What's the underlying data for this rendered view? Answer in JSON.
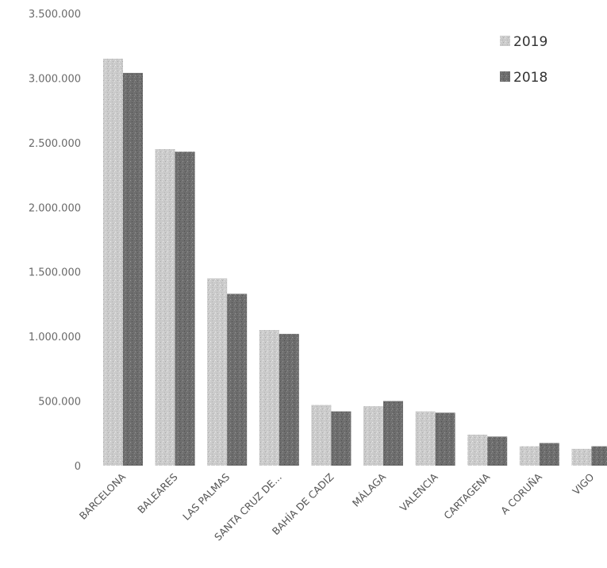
{
  "chart_data": {
    "type": "bar",
    "categories": [
      "BARCELONA",
      "BALEARES",
      "LAS PALMAS",
      "SANTA CRUZ DE...",
      "BAHÍA DE CADIZ",
      "MÁLAGA",
      "VALENCIA",
      "CARTAGENA",
      "A CORUÑA",
      "VIGO"
    ],
    "series": [
      {
        "name": "2019",
        "values": [
          3150000,
          2450000,
          1450000,
          1050000,
          470000,
          460000,
          420000,
          240000,
          150000,
          130000
        ]
      },
      {
        "name": "2018",
        "values": [
          3040000,
          2430000,
          1330000,
          1020000,
          420000,
          500000,
          410000,
          225000,
          175000,
          150000
        ]
      }
    ],
    "yticks": [
      "0",
      "500.000",
      "1.000.000",
      "1.500.000",
      "2.000.000",
      "2.500.000",
      "3.000.000",
      "3.500.000"
    ],
    "ylim": [
      0,
      3500000
    ],
    "legend_position": "top-right",
    "grid": false,
    "colors": {
      "2019": "#cbcbcb",
      "2018": "#6e6e6e"
    }
  }
}
